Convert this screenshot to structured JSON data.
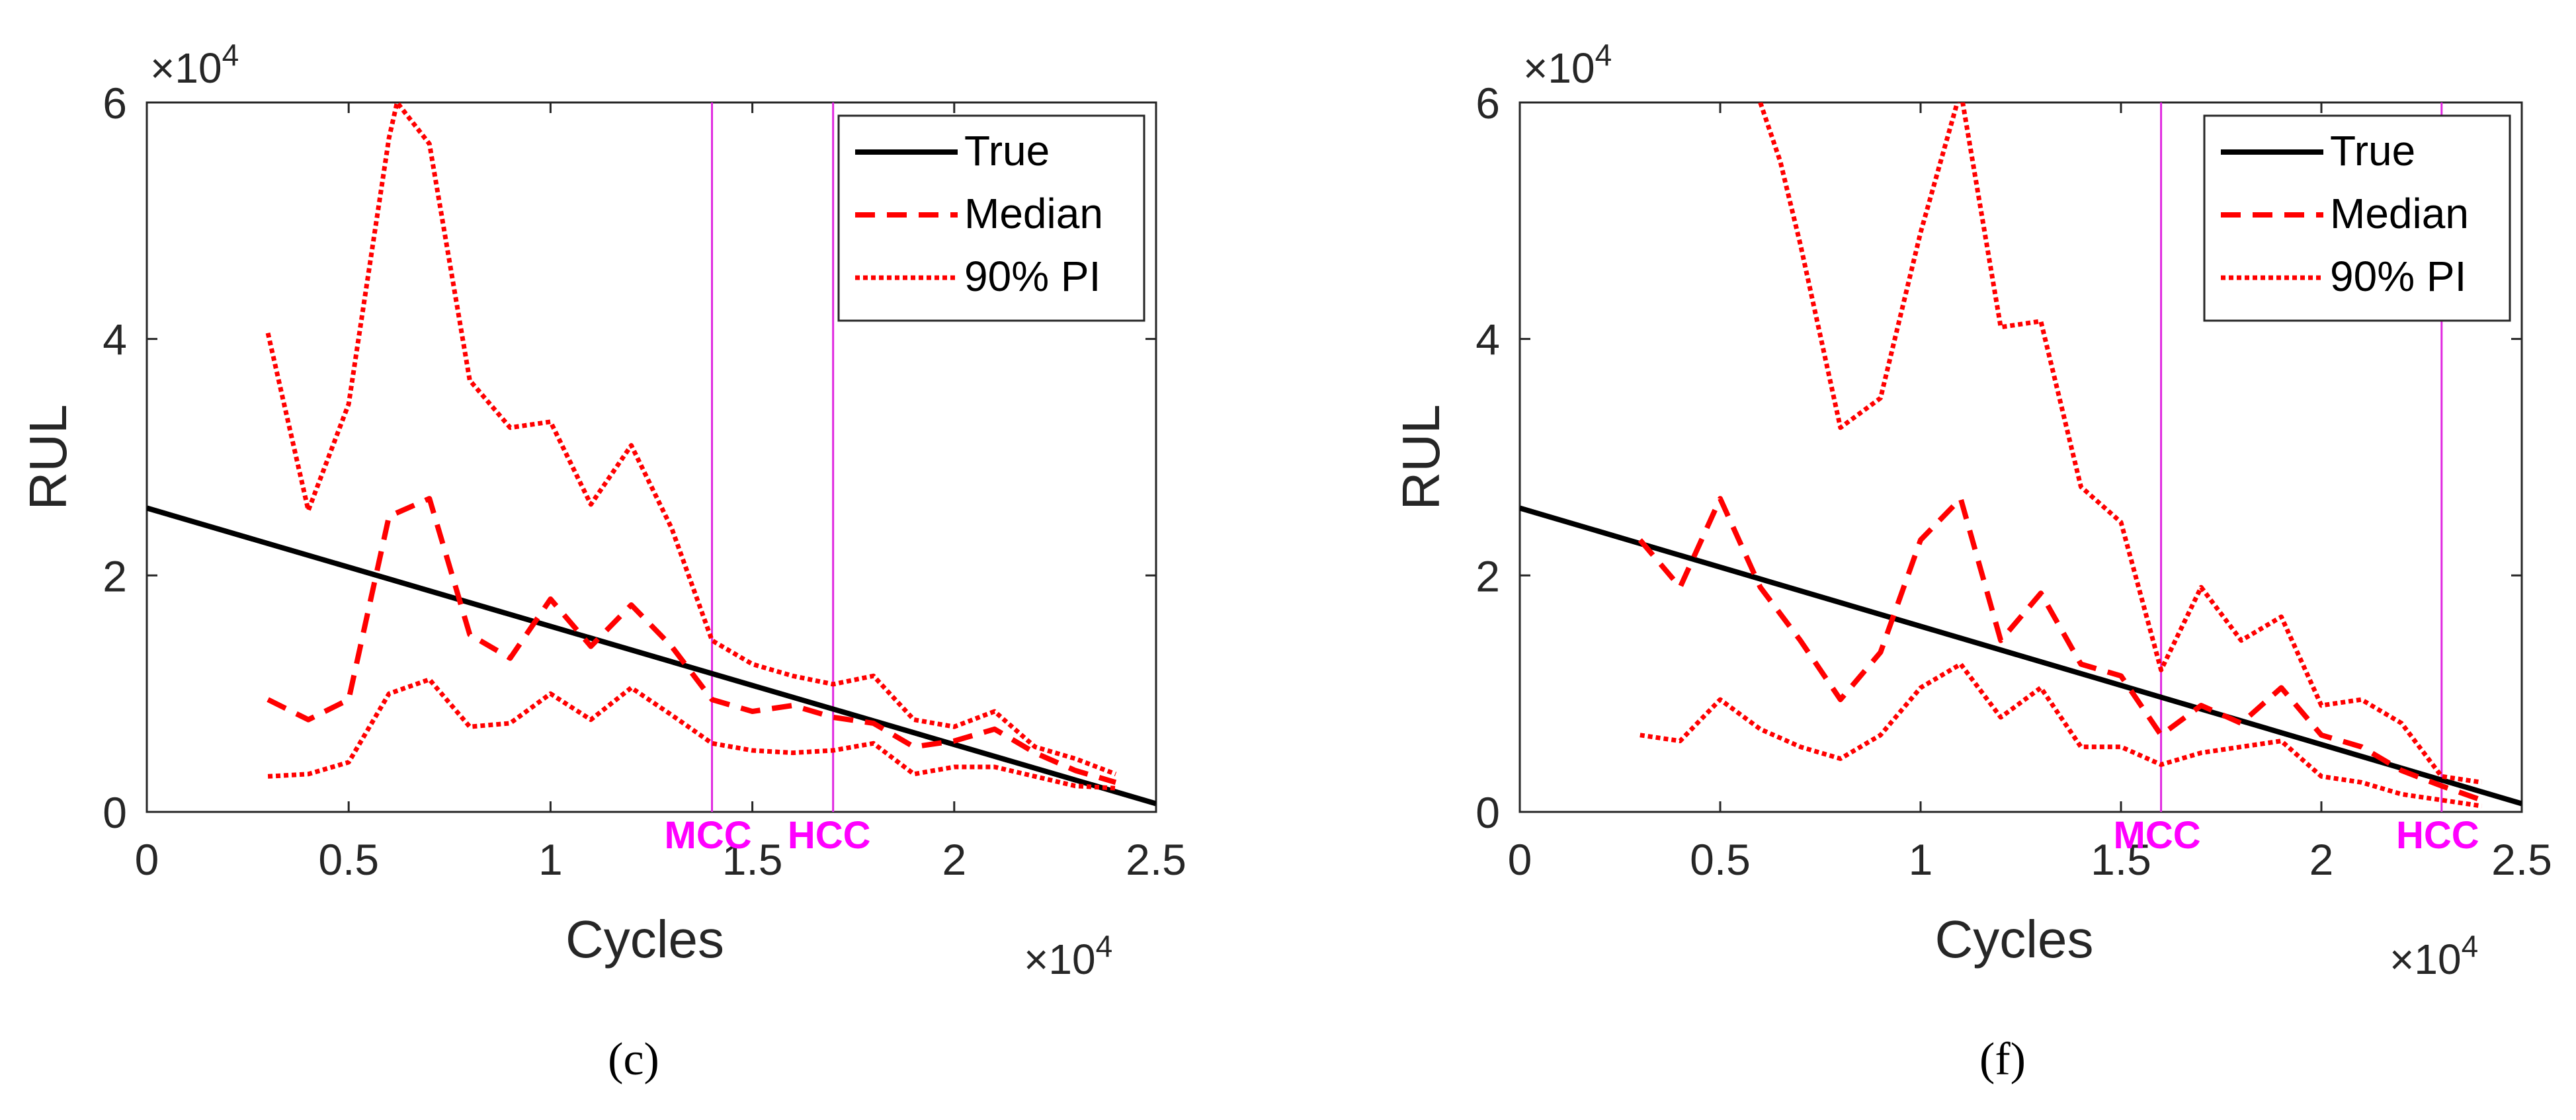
{
  "figure_panels": [
    "(c)",
    "(f)"
  ],
  "colors": {
    "true_line": "#000000",
    "prediction": "#ff0000",
    "threshold": "#e028e0",
    "threshold_label": "#ff00ff",
    "axis": "#262626"
  },
  "chart_data": [
    {
      "type": "line",
      "panel_label": "(c)",
      "xlabel": "Cycles",
      "ylabel": "RUL",
      "x_exponent": "×10",
      "x_exponent_power": "4",
      "y_exponent": "×10",
      "y_exponent_power": "4",
      "xlim": [
        0,
        2.5
      ],
      "ylim": [
        0,
        6
      ],
      "xticks": [
        0,
        0.5,
        1,
        1.5,
        2,
        2.5
      ],
      "xtick_labels": [
        "0",
        "0.5",
        "1",
        "1.5",
        "2",
        "2.5"
      ],
      "yticks": [
        0,
        2,
        4,
        6
      ],
      "ytick_labels": [
        "0",
        "2",
        "4",
        "6"
      ],
      "legend": {
        "position": "top-right",
        "entries": [
          "True",
          "Median",
          "90% PI"
        ]
      },
      "vlines": [
        {
          "label": "MCC",
          "x": 1.4
        },
        {
          "label": "HCC",
          "x": 1.7
        }
      ],
      "series": [
        {
          "name": "True",
          "style": "solid",
          "x": [
            0,
            2.5
          ],
          "y": [
            2.57,
            0.07
          ]
        },
        {
          "name": "Median",
          "style": "dashed",
          "x": [
            0.3,
            0.4,
            0.5,
            0.6,
            0.7,
            0.8,
            0.9,
            1.0,
            1.1,
            1.2,
            1.3,
            1.4,
            1.5,
            1.6,
            1.7,
            1.8,
            1.9,
            2.0,
            2.1,
            2.2,
            2.3,
            2.4
          ],
          "y": [
            0.95,
            0.78,
            0.95,
            2.5,
            2.65,
            1.5,
            1.3,
            1.8,
            1.4,
            1.75,
            1.4,
            0.95,
            0.85,
            0.9,
            0.8,
            0.75,
            0.55,
            0.6,
            0.7,
            0.5,
            0.35,
            0.25
          ]
        },
        {
          "name": "90% PI upper",
          "legend_entry": "90% PI",
          "style": "dotted",
          "x": [
            0.3,
            0.4,
            0.5,
            0.6,
            0.62,
            0.7,
            0.8,
            0.9,
            1.0,
            1.1,
            1.2,
            1.3,
            1.4,
            1.5,
            1.6,
            1.7,
            1.8,
            1.9,
            2.0,
            2.1,
            2.2,
            2.3,
            2.4
          ],
          "y": [
            4.05,
            2.55,
            3.45,
            5.7,
            6.0,
            5.65,
            3.65,
            3.25,
            3.3,
            2.6,
            3.1,
            2.4,
            1.45,
            1.25,
            1.15,
            1.08,
            1.15,
            0.78,
            0.72,
            0.85,
            0.55,
            0.45,
            0.32
          ]
        },
        {
          "name": "90% PI lower",
          "legend_entry": "90% PI",
          "style": "dotted",
          "x": [
            0.3,
            0.4,
            0.5,
            0.6,
            0.7,
            0.8,
            0.9,
            1.0,
            1.1,
            1.2,
            1.3,
            1.4,
            1.5,
            1.6,
            1.7,
            1.8,
            1.9,
            2.0,
            2.1,
            2.2,
            2.3,
            2.4
          ],
          "y": [
            0.3,
            0.32,
            0.42,
            1.0,
            1.12,
            0.72,
            0.75,
            1.0,
            0.78,
            1.05,
            0.82,
            0.58,
            0.52,
            0.5,
            0.52,
            0.58,
            0.32,
            0.38,
            0.38,
            0.3,
            0.22,
            0.2
          ]
        }
      ]
    },
    {
      "type": "line",
      "panel_label": "(f)",
      "xlabel": "Cycles",
      "ylabel": "RUL",
      "x_exponent": "×10",
      "x_exponent_power": "4",
      "y_exponent": "×10",
      "y_exponent_power": "4",
      "xlim": [
        0,
        2.5
      ],
      "ylim": [
        0,
        6
      ],
      "xticks": [
        0,
        0.5,
        1,
        1.5,
        2,
        2.5
      ],
      "xtick_labels": [
        "0",
        "0.5",
        "1",
        "1.5",
        "2",
        "2.5"
      ],
      "yticks": [
        0,
        2,
        4,
        6
      ],
      "ytick_labels": [
        "0",
        "2",
        "4",
        "6"
      ],
      "legend": {
        "position": "top-right",
        "entries": [
          "True",
          "Median",
          "90% PI"
        ]
      },
      "vlines": [
        {
          "label": "MCC",
          "x": 1.6
        },
        {
          "label": "HCC",
          "x": 2.3
        }
      ],
      "series": [
        {
          "name": "True",
          "style": "solid",
          "x": [
            0,
            2.5
          ],
          "y": [
            2.57,
            0.07
          ]
        },
        {
          "name": "Median",
          "style": "dashed",
          "x": [
            0.3,
            0.4,
            0.5,
            0.6,
            0.7,
            0.8,
            0.9,
            1.0,
            1.1,
            1.2,
            1.3,
            1.4,
            1.5,
            1.6,
            1.7,
            1.8,
            1.9,
            2.0,
            2.1,
            2.2,
            2.3,
            2.4
          ],
          "y": [
            2.3,
            1.9,
            2.65,
            1.9,
            1.45,
            0.95,
            1.35,
            2.3,
            2.65,
            1.45,
            1.85,
            1.25,
            1.15,
            0.65,
            0.9,
            0.75,
            1.05,
            0.65,
            0.55,
            0.35,
            0.22,
            0.1
          ]
        },
        {
          "name": "90% PI upper",
          "legend_entry": "90% PI",
          "style": "dotted",
          "x": [
            0.6,
            0.65,
            0.7,
            0.8,
            0.9,
            1.0,
            1.1,
            1.2,
            1.3,
            1.4,
            1.5,
            1.6,
            1.7,
            1.8,
            1.9,
            2.0,
            2.1,
            2.2,
            2.3,
            2.4
          ],
          "y": [
            6.0,
            5.5,
            4.8,
            3.25,
            3.5,
            4.9,
            6.1,
            4.1,
            4.15,
            2.75,
            2.45,
            1.2,
            1.9,
            1.45,
            1.65,
            0.9,
            0.95,
            0.75,
            0.3,
            0.25
          ]
        },
        {
          "name": "90% PI lower",
          "legend_entry": "90% PI",
          "style": "dotted",
          "x": [
            0.3,
            0.4,
            0.5,
            0.6,
            0.7,
            0.8,
            0.9,
            1.0,
            1.1,
            1.2,
            1.3,
            1.4,
            1.5,
            1.6,
            1.7,
            1.8,
            1.9,
            2.0,
            2.1,
            2.2,
            2.3,
            2.4
          ],
          "y": [
            0.65,
            0.6,
            0.95,
            0.7,
            0.55,
            0.45,
            0.65,
            1.05,
            1.25,
            0.8,
            1.05,
            0.55,
            0.55,
            0.4,
            0.5,
            0.55,
            0.6,
            0.3,
            0.25,
            0.15,
            0.1,
            0.05
          ]
        }
      ]
    }
  ]
}
